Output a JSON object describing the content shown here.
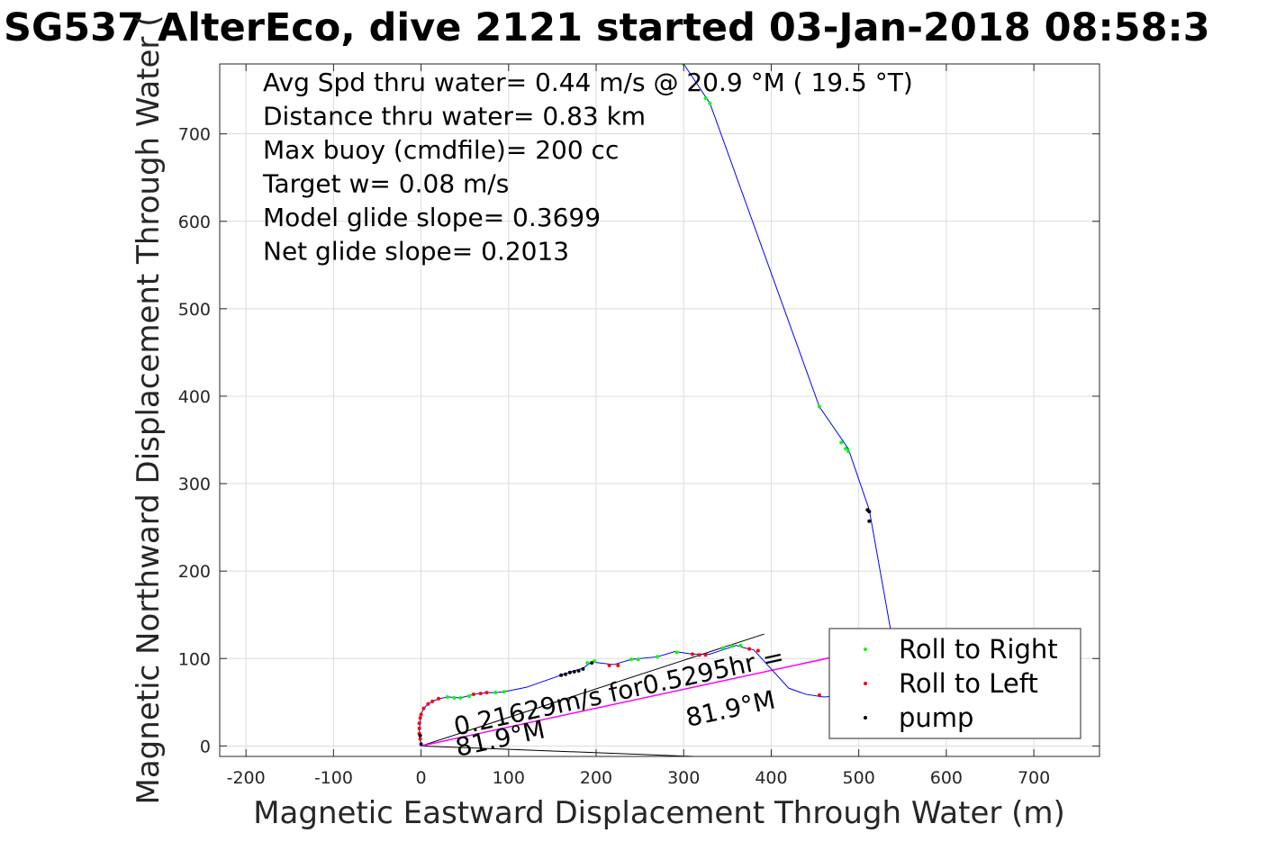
{
  "title": "SG537 AlterEco, dive 2121 started 03-Jan-2018 08:58:3",
  "chart_data": {
    "type": "scatter",
    "xlabel": "Magnetic Eastward Displacement Through Water (m)",
    "ylabel": "Magnetic Northward Displacement Through Water (",
    "xlim": [
      -230,
      775
    ],
    "ylim": [
      -12,
      780
    ],
    "xticks": [
      -200,
      -100,
      0,
      100,
      200,
      300,
      400,
      500,
      600,
      700
    ],
    "yticks": [
      0,
      100,
      200,
      300,
      400,
      500,
      600,
      700
    ],
    "xtick_labels": [
      "-200",
      "-100",
      "0",
      "100",
      "200",
      "300",
      "400",
      "500",
      "600",
      "700"
    ],
    "ytick_labels": [
      "0",
      "100",
      "200",
      "300",
      "400",
      "500",
      "600",
      "700"
    ],
    "grid": true,
    "stats": [
      "Avg Spd thru water=  0.44 m/s @  20.9 °M ( 19.5 °T)",
      "Distance thru water=  0.83 km",
      "Max buoy (cmdfile)= 200 cc",
      "Target w= 0.08 m/s",
      "Model glide slope= 0.3699",
      "Net glide slope= 0.2013"
    ],
    "track": [
      [
        0,
        0
      ],
      [
        -1,
        8
      ],
      [
        -2,
        18
      ],
      [
        -1,
        28
      ],
      [
        0,
        36
      ],
      [
        3,
        43
      ],
      [
        8,
        48
      ],
      [
        15,
        52
      ],
      [
        25,
        55
      ],
      [
        32,
        56
      ],
      [
        45,
        55
      ],
      [
        60,
        59
      ],
      [
        75,
        61
      ],
      [
        85,
        61
      ],
      [
        95,
        62
      ],
      [
        120,
        67
      ],
      [
        160,
        81
      ],
      [
        175,
        86
      ],
      [
        185,
        89
      ],
      [
        195,
        96
      ],
      [
        220,
        93
      ],
      [
        240,
        99
      ],
      [
        270,
        102
      ],
      [
        290,
        108
      ],
      [
        310,
        105
      ],
      [
        330,
        105
      ],
      [
        345,
        110
      ],
      [
        360,
        115
      ],
      [
        370,
        112
      ],
      [
        380,
        110
      ],
      [
        420,
        66
      ],
      [
        440,
        59
      ],
      [
        460,
        56
      ],
      [
        475,
        57
      ],
      [
        490,
        56
      ],
      [
        536,
        135
      ],
      [
        512,
        270
      ],
      [
        488,
        340
      ],
      [
        455,
        388
      ],
      [
        330,
        735
      ],
      [
        300,
        780
      ]
    ],
    "depth_avg_line": [
      [
        0,
        0
      ],
      [
        500,
        108
      ]
    ],
    "current_lines": [
      [
        [
          0,
          0
        ],
        [
          392,
          128
        ]
      ],
      [
        [
          0,
          0
        ],
        [
          415,
          -16
        ]
      ]
    ],
    "series": [
      {
        "name": "Roll to Right",
        "color": "#00ff00",
        "points": [
          [
            300,
            780
          ],
          [
            325,
            741
          ],
          [
            330,
            735
          ],
          [
            455,
            388
          ],
          [
            480,
            347
          ],
          [
            485,
            340
          ],
          [
            488,
            337
          ],
          [
            30,
            56
          ],
          [
            38,
            55
          ],
          [
            45,
            55
          ],
          [
            55,
            57
          ],
          [
            85,
            61
          ],
          [
            95,
            62
          ],
          [
            190,
            95
          ],
          [
            198,
            97
          ],
          [
            240,
            99
          ],
          [
            248,
            99
          ],
          [
            270,
            102
          ],
          [
            292,
            107
          ],
          [
            345,
            112
          ],
          [
            355,
            114
          ],
          [
            365,
            115
          ]
        ]
      },
      {
        "name": "Roll to Left",
        "color": "#ff0000",
        "points": [
          [
            -1,
            8
          ],
          [
            -2,
            14
          ],
          [
            -2,
            20
          ],
          [
            -2,
            26
          ],
          [
            -1,
            32
          ],
          [
            0,
            36
          ],
          [
            3,
            43
          ],
          [
            8,
            48
          ],
          [
            13,
            51
          ],
          [
            20,
            54
          ],
          [
            60,
            59
          ],
          [
            68,
            60
          ],
          [
            75,
            61
          ],
          [
            215,
            92
          ],
          [
            225,
            92
          ],
          [
            310,
            105
          ],
          [
            318,
            104
          ],
          [
            325,
            104
          ],
          [
            375,
            111
          ],
          [
            385,
            109
          ],
          [
            455,
            58
          ]
        ]
      },
      {
        "name": "pump",
        "color": "#000000",
        "points": [
          [
            160,
            81
          ],
          [
            165,
            82
          ],
          [
            170,
            84
          ],
          [
            175,
            85
          ],
          [
            180,
            86
          ],
          [
            185,
            88
          ],
          [
            195,
            95
          ],
          [
            510,
            270
          ],
          [
            512,
            268
          ],
          [
            512,
            257
          ],
          [
            -1,
            12
          ],
          [
            0,
            2
          ]
        ]
      }
    ],
    "annotations": [
      {
        "text": "0.21629m/s for0.5295hr =",
        "x": 40,
        "y": 12,
        "angle": -12.2
      },
      {
        "text": "81.9°M",
        "x": 42,
        "y": -12,
        "angle": -12.2
      },
      {
        "text": "81.9°M",
        "x": 305,
        "y": 22,
        "angle": -12.2
      }
    ],
    "legend": {
      "position": "bottom-right",
      "entries": [
        {
          "label": "Roll to Right",
          "color": "#00ff00"
        },
        {
          "label": "Roll to Left",
          "color": "#ff0000"
        },
        {
          "label": "pump",
          "color": "#000000"
        }
      ]
    }
  }
}
